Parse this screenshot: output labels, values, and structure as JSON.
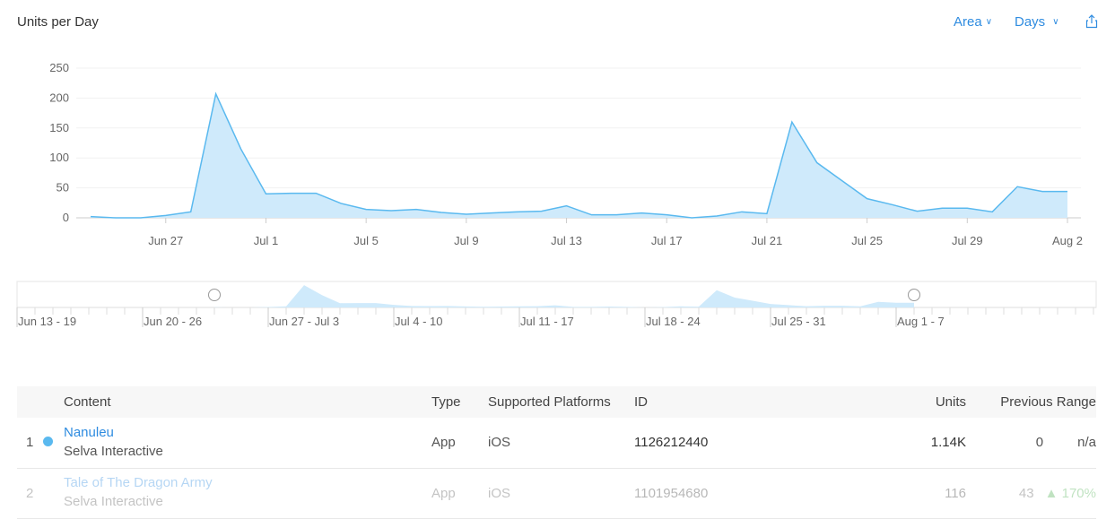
{
  "header": {
    "title": "Units per Day",
    "chart_type_label": "Area",
    "granularity_label": "Days"
  },
  "chart_data": {
    "type": "area",
    "title": "Units per Day",
    "xlabel": "",
    "ylabel": "",
    "ylim": [
      0,
      250
    ],
    "yticks": [
      0,
      50,
      100,
      150,
      200,
      250
    ],
    "xticks": [
      "Jun 27",
      "Jul 1",
      "Jul 5",
      "Jul 9",
      "Jul 13",
      "Jul 17",
      "Jul 21",
      "Jul 25",
      "Jul 29",
      "Aug 2"
    ],
    "x": [
      "Jun 24",
      "Jun 25",
      "Jun 26",
      "Jun 27",
      "Jun 28",
      "Jun 29",
      "Jun 30",
      "Jul 1",
      "Jul 2",
      "Jul 3",
      "Jul 4",
      "Jul 5",
      "Jul 6",
      "Jul 7",
      "Jul 8",
      "Jul 9",
      "Jul 10",
      "Jul 11",
      "Jul 12",
      "Jul 13",
      "Jul 14",
      "Jul 15",
      "Jul 16",
      "Jul 17",
      "Jul 18",
      "Jul 19",
      "Jul 20",
      "Jul 21",
      "Jul 22",
      "Jul 23",
      "Jul 24",
      "Jul 25",
      "Jul 26",
      "Jul 27",
      "Jul 28",
      "Jul 29",
      "Jul 30",
      "Jul 31",
      "Aug 1",
      "Aug 2"
    ],
    "values": [
      2,
      0,
      0,
      4,
      10,
      207,
      115,
      40,
      41,
      41,
      24,
      14,
      12,
      14,
      9,
      6,
      8,
      10,
      11,
      20,
      5,
      5,
      8,
      5,
      0,
      3,
      10,
      7,
      160,
      92,
      62,
      32,
      22,
      11,
      16,
      16,
      10,
      52,
      44,
      44
    ],
    "grid": true,
    "color": "#5ab9ef",
    "fill": "#cfeafb"
  },
  "navigator": {
    "week_labels": [
      "Jun 13 - 19",
      "Jun 20 - 26",
      "Jun 27 - Jul 3",
      "Jul 4 - 10",
      "Jul 11 - 17",
      "Jul 18 - 24",
      "Jul 25 - 31",
      "Aug 1 - 7"
    ],
    "range_start_index": 11,
    "range_end_index": 50
  },
  "table": {
    "columns": [
      "Content",
      "Type",
      "Supported Platforms",
      "ID",
      "Units",
      "Previous Range"
    ],
    "rows": [
      {
        "rank": "1",
        "name": "Nanuleu",
        "developer": "Selva Interactive",
        "type": "App",
        "platform": "iOS",
        "id": "1126212440",
        "units": "1.14K",
        "prev": "0",
        "change": "n/a"
      },
      {
        "rank": "2",
        "name": "Tale of The Dragon Army",
        "developer": "Selva Interactive",
        "type": "App",
        "platform": "iOS",
        "id": "1101954680",
        "units": "116",
        "prev": "43",
        "change": "▲ 170%"
      }
    ]
  }
}
